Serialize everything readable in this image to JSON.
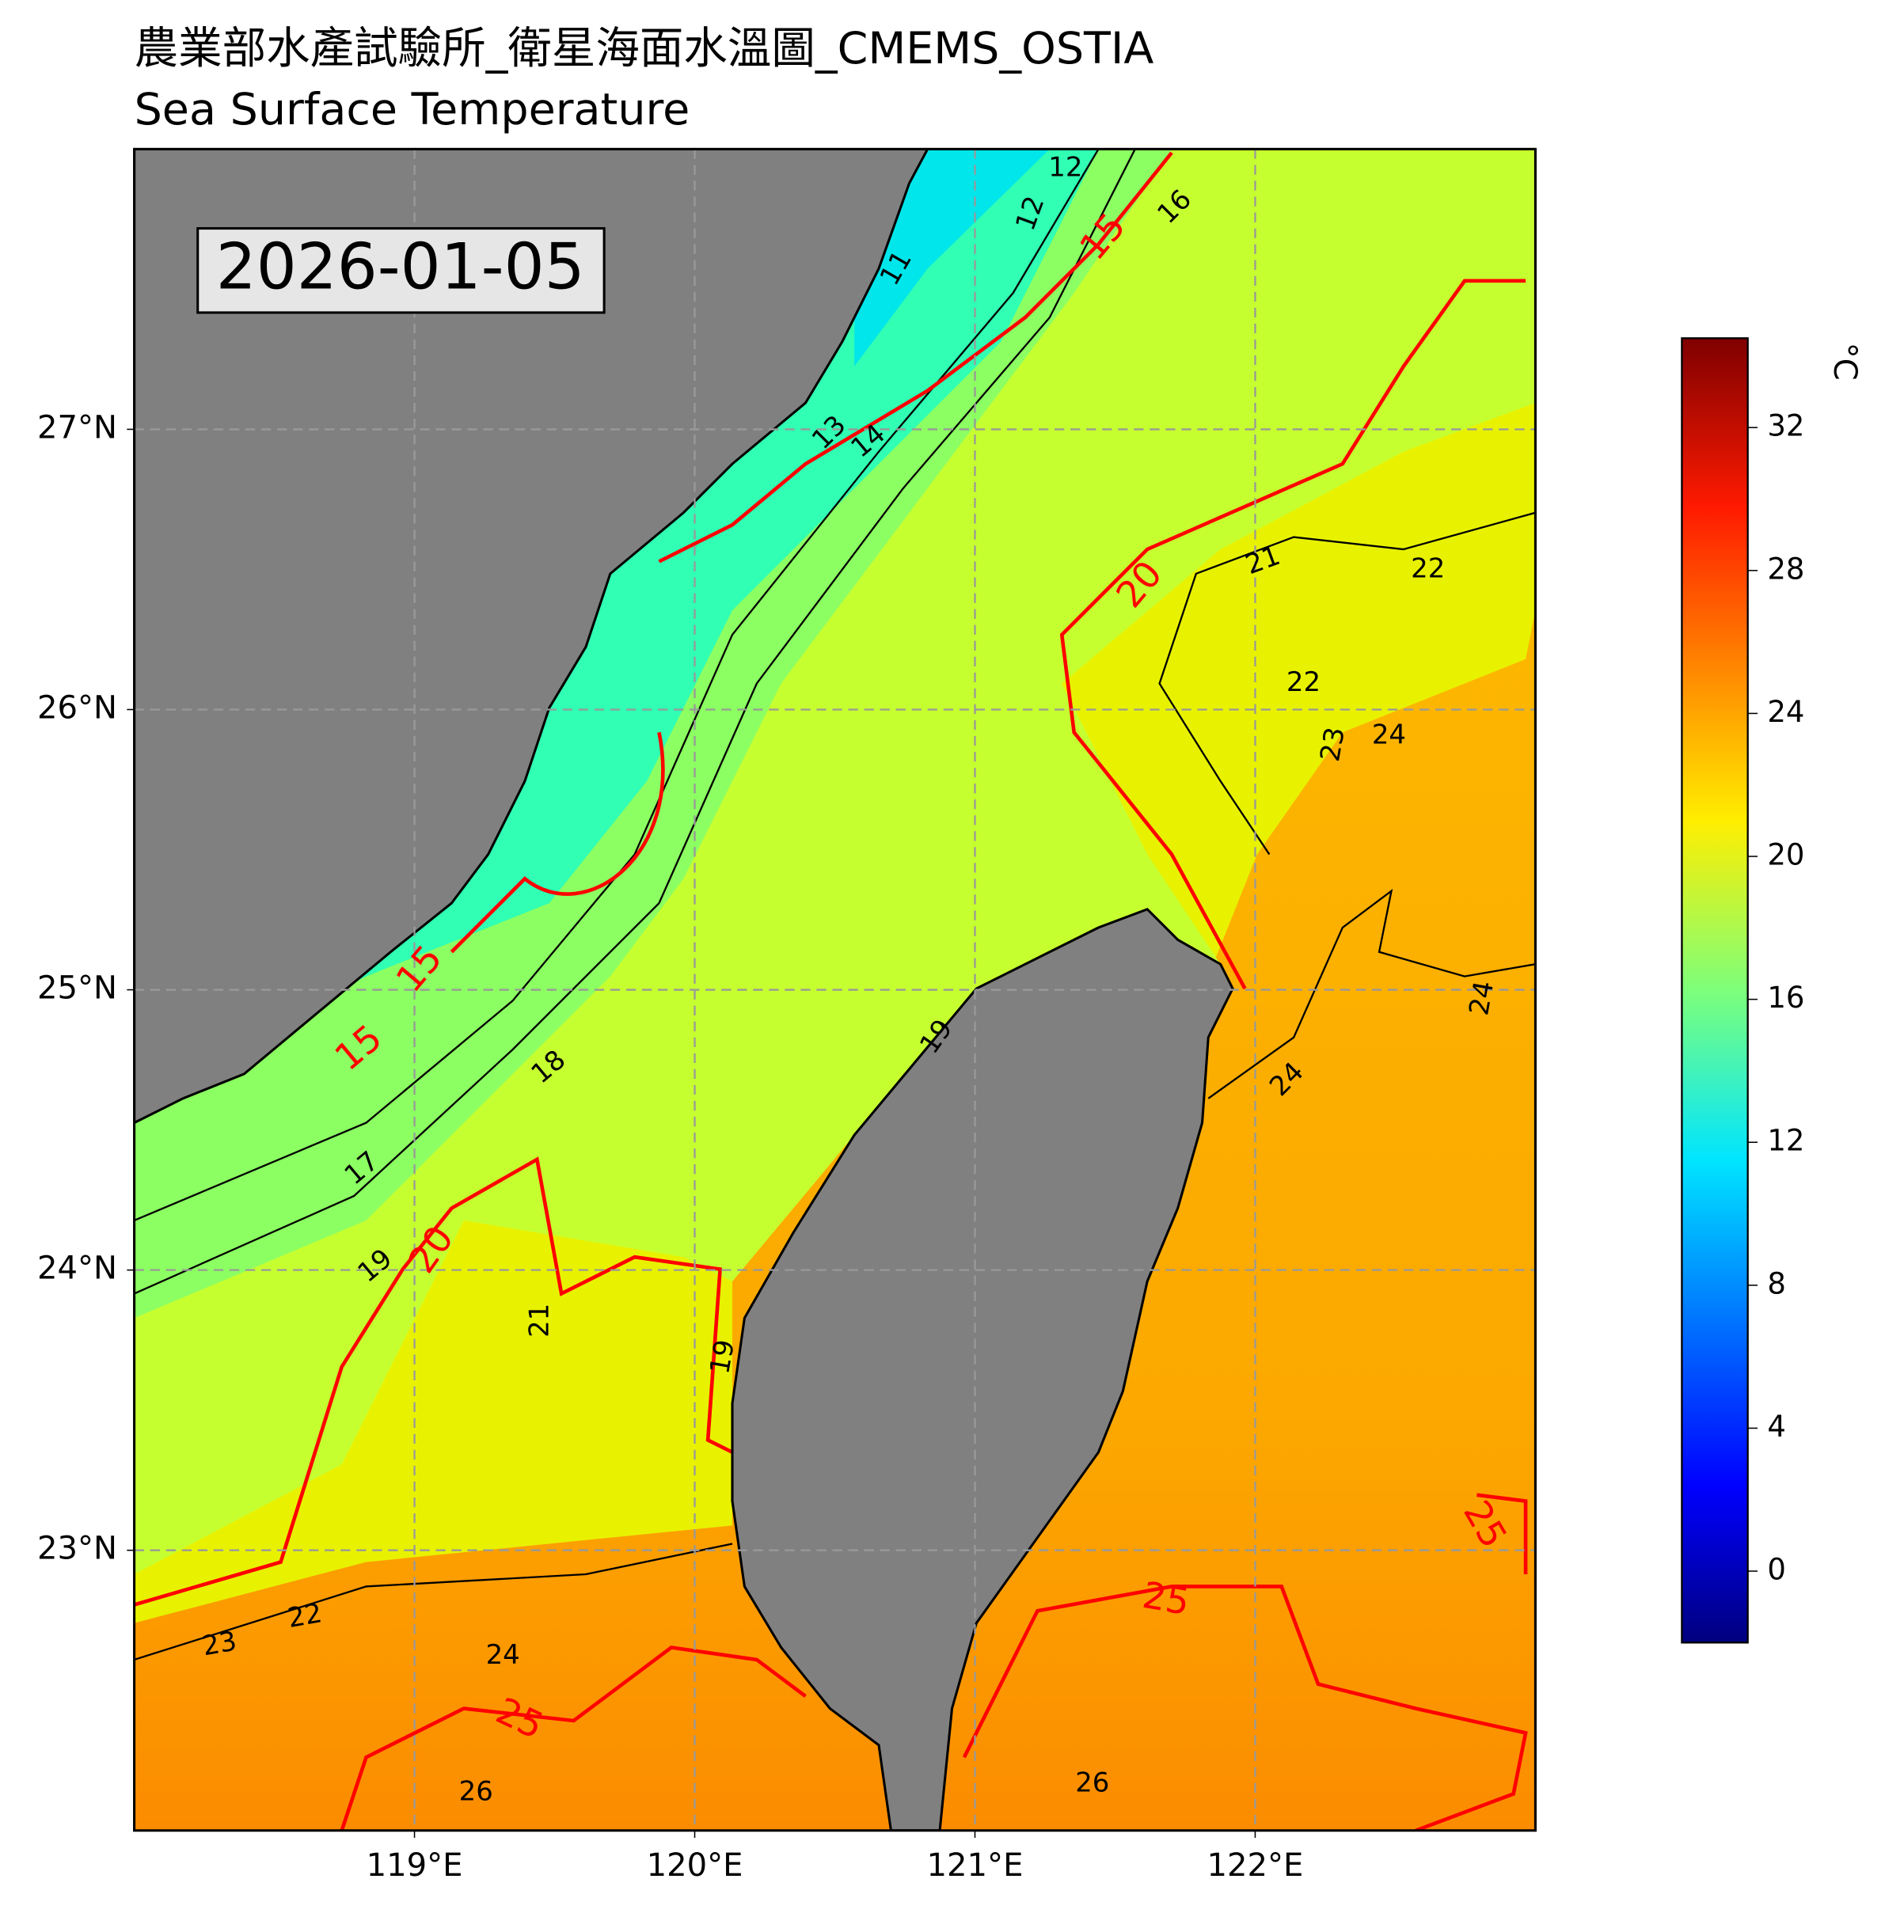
{
  "map": {
    "title": "農業部水產試驗所_衛星海面水溫圖_CMEMS_OSTIA",
    "subtitle": "Sea Surface Temperature",
    "date": "2026-01-05",
    "lonlim": [
      118,
      123
    ],
    "latlim": [
      22,
      28
    ],
    "lonticks": [
      {
        "value": 119,
        "label": "119°E"
      },
      {
        "value": 120,
        "label": "120°E"
      },
      {
        "value": 121,
        "label": "121°E"
      },
      {
        "value": 122,
        "label": "122°E"
      }
    ],
    "latticks": [
      {
        "value": 23,
        "label": "23°N"
      },
      {
        "value": 24,
        "label": "24°N"
      },
      {
        "value": 25,
        "label": "25°N"
      },
      {
        "value": 26,
        "label": "26°N"
      },
      {
        "value": 27,
        "label": "27°N"
      }
    ],
    "grid": true,
    "contour_labels": [
      12,
      12,
      11,
      13,
      14,
      15,
      16,
      15,
      15,
      20,
      21,
      22,
      22,
      23,
      24,
      18,
      17,
      19,
      20,
      21,
      19,
      19,
      24,
      24,
      25,
      25,
      25,
      22,
      23,
      24,
      26,
      26
    ],
    "major_contour_color": "#ff0000",
    "colorbar": {
      "label": "°C",
      "lim": [
        -2,
        34.5
      ],
      "ticks": [
        0,
        4,
        8,
        12,
        16,
        20,
        24,
        28,
        32
      ]
    }
  }
}
